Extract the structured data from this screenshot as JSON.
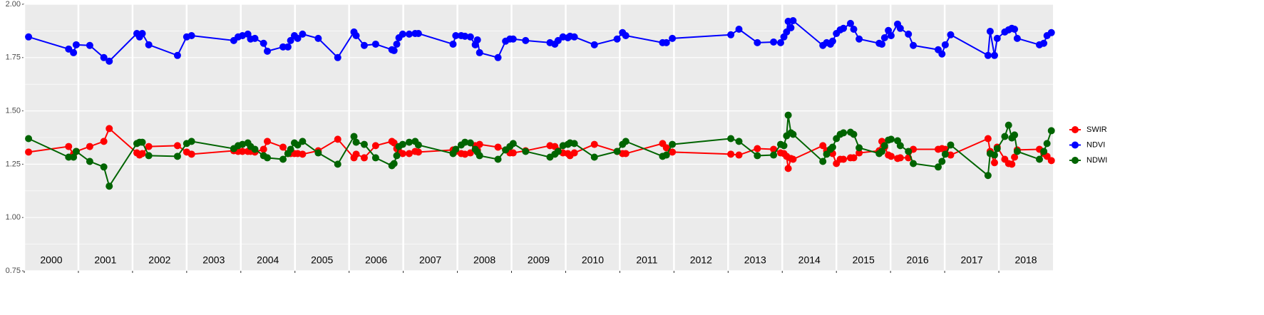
{
  "chart_data": {
    "type": "line",
    "x": [
      2000.08,
      2000.82,
      2000.91,
      2000.96,
      2001.21,
      2001.47,
      2001.57,
      2002.08,
      2002.13,
      2002.18,
      2002.3,
      2002.83,
      2003.0,
      2003.09,
      2003.87,
      2003.95,
      2004.03,
      2004.13,
      2004.18,
      2004.26,
      2004.42,
      2004.49,
      2004.78,
      2004.87,
      2004.92,
      2004.99,
      2005.05,
      2005.14,
      2005.43,
      2005.79,
      2006.09,
      2006.13,
      2006.28,
      2006.49,
      2006.79,
      2006.83,
      2006.88,
      2006.92,
      2006.99,
      2007.11,
      2007.22,
      2007.28,
      2007.92,
      2007.97,
      2008.07,
      2008.14,
      2008.24,
      2008.33,
      2008.37,
      2008.41,
      2008.75,
      2008.89,
      2008.97,
      2009.03,
      2009.26,
      2009.71,
      2009.8,
      2009.86,
      2009.95,
      2010.04,
      2010.08,
      2010.16,
      2010.53,
      2010.95,
      2011.05,
      2011.11,
      2011.79,
      2011.86,
      2011.97,
      2013.05,
      2013.2,
      2013.54,
      2013.84,
      2013.97,
      2014.03,
      2014.08,
      2014.11,
      2014.16,
      2014.2,
      2014.75,
      2014.82,
      2014.89,
      2014.93,
      2015.0,
      2015.07,
      2015.13,
      2015.26,
      2015.32,
      2015.42,
      2015.79,
      2015.84,
      2015.89,
      2015.96,
      2016.01,
      2016.13,
      2016.18,
      2016.33,
      2016.42,
      2016.88,
      2016.95,
      2017.01,
      2017.11,
      2017.8,
      2017.84,
      2017.92,
      2017.97,
      2018.11,
      2018.18,
      2018.24,
      2018.29,
      2018.34,
      2018.75,
      2018.83,
      2018.89,
      2018.97
    ],
    "series": [
      {
        "name": "SWIR",
        "color": "#ff0000",
        "values": [
          1.307,
          1.333,
          1.297,
          1.31,
          1.333,
          1.357,
          1.417,
          1.303,
          1.293,
          1.3,
          1.333,
          1.337,
          1.307,
          1.297,
          1.313,
          1.31,
          1.31,
          1.31,
          1.31,
          1.307,
          1.32,
          1.357,
          1.33,
          1.3,
          1.3,
          1.3,
          1.3,
          1.297,
          1.313,
          1.367,
          1.28,
          1.297,
          1.28,
          1.337,
          1.357,
          1.35,
          1.323,
          1.31,
          1.3,
          1.3,
          1.31,
          1.307,
          1.317,
          1.31,
          1.3,
          1.297,
          1.303,
          1.337,
          1.317,
          1.343,
          1.33,
          1.317,
          1.303,
          1.303,
          1.313,
          1.337,
          1.333,
          1.313,
          1.303,
          1.3,
          1.29,
          1.303,
          1.343,
          1.31,
          1.3,
          1.3,
          1.347,
          1.327,
          1.307,
          1.297,
          1.293,
          1.323,
          1.32,
          1.303,
          1.3,
          1.287,
          1.23,
          1.277,
          1.273,
          1.337,
          1.313,
          1.31,
          1.3,
          1.253,
          1.273,
          1.273,
          1.28,
          1.28,
          1.303,
          1.313,
          1.357,
          1.33,
          1.293,
          1.287,
          1.277,
          1.28,
          1.28,
          1.32,
          1.32,
          1.323,
          1.32,
          1.293,
          1.37,
          1.31,
          1.257,
          1.33,
          1.273,
          1.253,
          1.25,
          1.283,
          1.317,
          1.32,
          1.3,
          1.287,
          1.267
        ]
      },
      {
        "name": "NDVI",
        "color": "#0000ff",
        "values": [
          1.847,
          1.79,
          1.773,
          1.81,
          1.807,
          1.75,
          1.733,
          1.863,
          1.847,
          1.863,
          1.81,
          1.76,
          1.847,
          1.853,
          1.83,
          1.847,
          1.853,
          1.86,
          1.837,
          1.84,
          1.817,
          1.78,
          1.8,
          1.8,
          1.83,
          1.853,
          1.84,
          1.86,
          1.84,
          1.75,
          1.87,
          1.853,
          1.807,
          1.813,
          1.787,
          1.783,
          1.813,
          1.843,
          1.86,
          1.86,
          1.863,
          1.863,
          1.813,
          1.853,
          1.853,
          1.85,
          1.847,
          1.81,
          1.833,
          1.773,
          1.75,
          1.827,
          1.837,
          1.837,
          1.83,
          1.82,
          1.813,
          1.83,
          1.847,
          1.843,
          1.85,
          1.847,
          1.81,
          1.837,
          1.867,
          1.853,
          1.82,
          1.82,
          1.84,
          1.857,
          1.883,
          1.82,
          1.823,
          1.82,
          1.847,
          1.87,
          1.92,
          1.89,
          1.923,
          1.807,
          1.82,
          1.813,
          1.827,
          1.863,
          1.88,
          1.887,
          1.91,
          1.883,
          1.837,
          1.817,
          1.813,
          1.843,
          1.877,
          1.853,
          1.907,
          1.887,
          1.86,
          1.807,
          1.787,
          1.767,
          1.81,
          1.857,
          1.76,
          1.873,
          1.76,
          1.84,
          1.87,
          1.88,
          1.887,
          1.883,
          1.84,
          1.81,
          1.817,
          1.853,
          1.867
        ]
      },
      {
        "name": "NDWI",
        "color": "#006400",
        "values": [
          1.37,
          1.283,
          1.283,
          1.31,
          1.263,
          1.237,
          1.147,
          1.347,
          1.353,
          1.353,
          1.29,
          1.287,
          1.347,
          1.357,
          1.323,
          1.337,
          1.343,
          1.35,
          1.333,
          1.32,
          1.29,
          1.28,
          1.273,
          1.3,
          1.32,
          1.35,
          1.34,
          1.357,
          1.303,
          1.25,
          1.38,
          1.353,
          1.343,
          1.28,
          1.243,
          1.253,
          1.29,
          1.333,
          1.343,
          1.353,
          1.357,
          1.34,
          1.3,
          1.32,
          1.34,
          1.353,
          1.35,
          1.32,
          1.307,
          1.29,
          1.273,
          1.317,
          1.333,
          1.347,
          1.31,
          1.283,
          1.297,
          1.31,
          1.337,
          1.343,
          1.35,
          1.347,
          1.283,
          1.31,
          1.343,
          1.357,
          1.287,
          1.293,
          1.343,
          1.37,
          1.357,
          1.29,
          1.293,
          1.343,
          1.337,
          1.383,
          1.48,
          1.397,
          1.39,
          1.263,
          1.297,
          1.32,
          1.33,
          1.37,
          1.39,
          1.397,
          1.4,
          1.39,
          1.327,
          1.3,
          1.31,
          1.337,
          1.363,
          1.367,
          1.36,
          1.337,
          1.31,
          1.253,
          1.237,
          1.263,
          1.297,
          1.34,
          1.197,
          1.3,
          1.293,
          1.323,
          1.38,
          1.433,
          1.373,
          1.387,
          1.31,
          1.273,
          1.31,
          1.347,
          1.407
        ]
      }
    ],
    "xlim": [
      2000,
      2019
    ],
    "xticks": [
      {
        "value": 2000,
        "label": "2000"
      },
      {
        "value": 2001,
        "label": "2001"
      },
      {
        "value": 2002,
        "label": "2002"
      },
      {
        "value": 2003,
        "label": "2003"
      },
      {
        "value": 2004,
        "label": "2004"
      },
      {
        "value": 2005,
        "label": "2005"
      },
      {
        "value": 2006,
        "label": "2006"
      },
      {
        "value": 2007,
        "label": "2007"
      },
      {
        "value": 2008,
        "label": "2008"
      },
      {
        "value": 2009,
        "label": "2009"
      },
      {
        "value": 2010,
        "label": "2010"
      },
      {
        "value": 2011,
        "label": "2011"
      },
      {
        "value": 2012,
        "label": "2012"
      },
      {
        "value": 2013,
        "label": "2013"
      },
      {
        "value": 2014,
        "label": "2014"
      },
      {
        "value": 2015,
        "label": "2015"
      },
      {
        "value": 2016,
        "label": "2016"
      },
      {
        "value": 2017,
        "label": "2017"
      },
      {
        "value": 2018,
        "label": "2018"
      }
    ],
    "ylim": [
      0.75,
      2.0
    ],
    "yticks": [
      {
        "value": 0.75,
        "label": "0.75"
      },
      {
        "value": 1.0,
        "label": "1.00"
      },
      {
        "value": 1.25,
        "label": "1.25"
      },
      {
        "value": 1.5,
        "label": "1.50"
      },
      {
        "value": 1.75,
        "label": "1.75"
      },
      {
        "value": 2.0,
        "label": "2.00"
      }
    ],
    "minor_yticks": [
      0.875,
      1.125,
      1.375,
      1.625,
      1.875
    ],
    "grid": true,
    "legend": "right"
  }
}
